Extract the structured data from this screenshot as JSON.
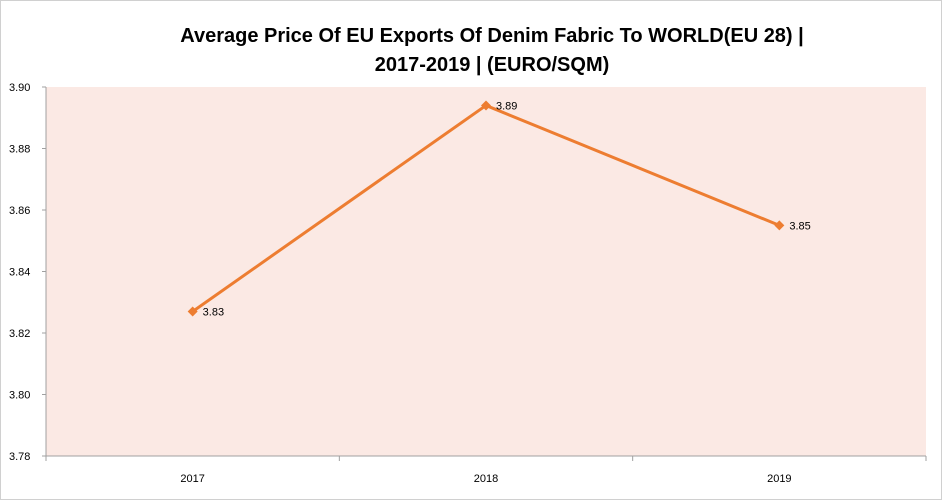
{
  "chart_data": {
    "type": "line",
    "title_line1": "Average Price Of EU Exports Of Denim Fabric To WORLD(EU 28) |",
    "title_line2": "2017-2019 | (EURO/SQM)",
    "categories": [
      "2017",
      "2018",
      "2019"
    ],
    "series": [
      {
        "values": [
          3.827,
          3.894,
          3.855
        ],
        "data_labels": [
          "3.83",
          "3.89",
          "3.85"
        ],
        "color": "#ed7d31",
        "marker": "diamond"
      }
    ],
    "ylim": [
      3.78,
      3.9
    ],
    "yticks": [
      "3.78",
      "3.80",
      "3.82",
      "3.84",
      "3.86",
      "3.88",
      "3.90"
    ],
    "grid": false,
    "legend": "none",
    "plot_background": "#fbe9e4",
    "axis_color": "#a0a0a0"
  }
}
